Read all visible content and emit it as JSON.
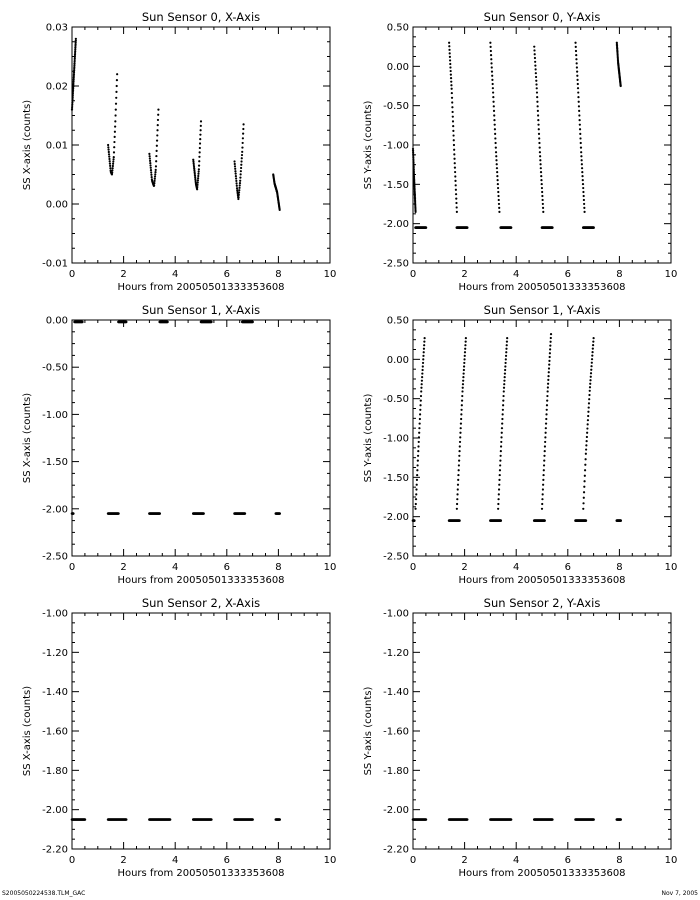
{
  "footer": {
    "left": "S2005050224538.TLM_GAC",
    "right": "Nov  7, 2005"
  },
  "chart_data": [
    {
      "type": "scatter",
      "title": "Sun Sensor 0, X-Axis",
      "xlabel": "Hours from 20050501333353608",
      "ylabel": "SS X-axis (counts)",
      "xlim": [
        0,
        10
      ],
      "ylim": [
        -0.01,
        0.03
      ],
      "xticks": [
        0,
        2,
        4,
        6,
        8,
        10
      ],
      "yticks": [
        -0.01,
        0.0,
        0.01,
        0.02,
        0.03
      ],
      "ytick_labels": [
        "-0.01",
        "0.00",
        "0.01",
        "0.02",
        "0.03"
      ],
      "segments": [
        {
          "kind": "curve",
          "x_start": 0.0,
          "x_end": 0.15,
          "points": [
            [
              0.0,
              0.016
            ],
            [
              0.05,
              0.02
            ],
            [
              0.1,
              0.024
            ],
            [
              0.15,
              0.028
            ]
          ]
        },
        {
          "kind": "curve",
          "x_start": 1.4,
          "x_end": 1.75,
          "points": [
            [
              1.4,
              0.01
            ],
            [
              1.5,
              0.0055
            ],
            [
              1.55,
              0.005
            ],
            [
              1.62,
              0.008
            ],
            [
              1.68,
              0.014
            ],
            [
              1.75,
              0.022
            ]
          ]
        },
        {
          "kind": "curve",
          "x_start": 3.0,
          "x_end": 3.35,
          "points": [
            [
              3.0,
              0.0085
            ],
            [
              3.1,
              0.004
            ],
            [
              3.18,
              0.003
            ],
            [
              3.25,
              0.006
            ],
            [
              3.3,
              0.011
            ],
            [
              3.35,
              0.016
            ]
          ]
        },
        {
          "kind": "curve",
          "x_start": 4.7,
          "x_end": 5.0,
          "points": [
            [
              4.7,
              0.0075
            ],
            [
              4.8,
              0.0035
            ],
            [
              4.85,
              0.0025
            ],
            [
              4.92,
              0.006
            ],
            [
              4.96,
              0.01
            ],
            [
              5.0,
              0.014
            ]
          ]
        },
        {
          "kind": "curve",
          "x_start": 6.3,
          "x_end": 6.65,
          "points": [
            [
              6.3,
              0.0072
            ],
            [
              6.4,
              0.0025
            ],
            [
              6.45,
              0.0008
            ],
            [
              6.52,
              0.004
            ],
            [
              6.6,
              0.009
            ],
            [
              6.65,
              0.0135
            ]
          ]
        },
        {
          "kind": "curve",
          "x_start": 7.8,
          "x_end": 8.05,
          "points": [
            [
              7.8,
              0.005
            ],
            [
              7.85,
              0.0035
            ],
            [
              7.95,
              0.002
            ],
            [
              8.0,
              0.0005
            ],
            [
              8.05,
              -0.001
            ]
          ]
        }
      ]
    },
    {
      "type": "scatter",
      "title": "Sun Sensor 0, Y-Axis",
      "xlabel": "Hours from 20050501333353608",
      "ylabel": "SS Y-axis (counts)",
      "xlim": [
        0,
        10
      ],
      "ylim": [
        -2.5,
        0.5
      ],
      "xticks": [
        0,
        2,
        4,
        6,
        8,
        10
      ],
      "yticks": [
        -2.5,
        -2.0,
        -1.5,
        -1.0,
        -0.5,
        0.0,
        0.5
      ],
      "ytick_labels": [
        "-2.50",
        "-2.00",
        "-1.50",
        "-1.00",
        "-0.50",
        "0.00",
        "0.50"
      ],
      "segments": [
        {
          "kind": "curve",
          "x_start": 0.0,
          "x_end": 0.1,
          "points": [
            [
              0.0,
              -1.05
            ],
            [
              0.04,
              -1.4
            ],
            [
              0.08,
              -1.7
            ],
            [
              0.1,
              -1.85
            ]
          ]
        },
        {
          "kind": "flat",
          "x_start": 0.1,
          "x_end": 0.5,
          "y": -2.05
        },
        {
          "kind": "curve",
          "x_start": 1.4,
          "x_end": 1.7,
          "points": [
            [
              1.4,
              0.3
            ],
            [
              1.5,
              -0.3
            ],
            [
              1.6,
              -1.1
            ],
            [
              1.7,
              -1.85
            ]
          ]
        },
        {
          "kind": "flat",
          "x_start": 1.7,
          "x_end": 2.1,
          "y": -2.05
        },
        {
          "kind": "curve",
          "x_start": 3.0,
          "x_end": 3.35,
          "points": [
            [
              3.0,
              0.3
            ],
            [
              3.1,
              -0.3
            ],
            [
              3.22,
              -1.1
            ],
            [
              3.35,
              -1.85
            ]
          ]
        },
        {
          "kind": "flat",
          "x_start": 3.4,
          "x_end": 3.8,
          "y": -2.05
        },
        {
          "kind": "curve",
          "x_start": 4.7,
          "x_end": 5.05,
          "points": [
            [
              4.7,
              0.25
            ],
            [
              4.8,
              -0.3
            ],
            [
              4.92,
              -1.1
            ],
            [
              5.05,
              -1.85
            ]
          ]
        },
        {
          "kind": "flat",
          "x_start": 5.0,
          "x_end": 5.4,
          "y": -2.05
        },
        {
          "kind": "curve",
          "x_start": 6.3,
          "x_end": 6.65,
          "points": [
            [
              6.3,
              0.3
            ],
            [
              6.4,
              -0.3
            ],
            [
              6.52,
              -1.1
            ],
            [
              6.65,
              -1.85
            ]
          ]
        },
        {
          "kind": "flat",
          "x_start": 6.6,
          "x_end": 7.0,
          "y": -2.05
        },
        {
          "kind": "curve",
          "x_start": 7.9,
          "x_end": 8.05,
          "points": [
            [
              7.9,
              0.3
            ],
            [
              7.95,
              0.05
            ],
            [
              8.0,
              -0.1
            ],
            [
              8.05,
              -0.25
            ]
          ]
        }
      ]
    },
    {
      "type": "scatter",
      "title": "Sun Sensor 1, X-Axis",
      "xlabel": "Hours from 20050501333353608",
      "ylabel": "SS X-axis (counts)",
      "xlim": [
        0,
        10
      ],
      "ylim": [
        -2.5,
        0.0
      ],
      "xticks": [
        0,
        2,
        4,
        6,
        8,
        10
      ],
      "yticks": [
        -2.5,
        -2.0,
        -1.5,
        -1.0,
        -0.5,
        0.0
      ],
      "ytick_labels": [
        "-2.50",
        "-2.00",
        "-1.50",
        "-1.00",
        "-0.50",
        "0.00"
      ],
      "segments": [
        {
          "kind": "flat",
          "x_start": 0.1,
          "x_end": 0.4,
          "y": -0.02
        },
        {
          "kind": "flat",
          "x_start": 1.8,
          "x_end": 2.1,
          "y": -0.02
        },
        {
          "kind": "flat",
          "x_start": 3.4,
          "x_end": 3.7,
          "y": -0.02
        },
        {
          "kind": "flat",
          "x_start": 5.0,
          "x_end": 5.4,
          "y": -0.02
        },
        {
          "kind": "flat",
          "x_start": 6.6,
          "x_end": 7.0,
          "y": -0.02
        },
        {
          "kind": "flat",
          "x_start": 0.0,
          "x_end": 0.05,
          "y": -2.05
        },
        {
          "kind": "flat",
          "x_start": 1.4,
          "x_end": 1.8,
          "y": -2.05
        },
        {
          "kind": "flat",
          "x_start": 3.0,
          "x_end": 3.4,
          "y": -2.05
        },
        {
          "kind": "flat",
          "x_start": 4.7,
          "x_end": 5.1,
          "y": -2.05
        },
        {
          "kind": "flat",
          "x_start": 6.3,
          "x_end": 6.7,
          "y": -2.05
        },
        {
          "kind": "flat",
          "x_start": 7.9,
          "x_end": 8.05,
          "y": -2.05
        }
      ]
    },
    {
      "type": "scatter",
      "title": "Sun Sensor 1, Y-Axis",
      "xlabel": "Hours from 20050501333353608",
      "ylabel": "SS Y-axis (counts)",
      "xlim": [
        0,
        10
      ],
      "ylim": [
        -2.5,
        0.5
      ],
      "xticks": [
        0,
        2,
        4,
        6,
        8,
        10
      ],
      "yticks": [
        -2.5,
        -2.0,
        -1.5,
        -1.0,
        -0.5,
        0.0,
        0.5
      ],
      "ytick_labels": [
        "-2.50",
        "-2.00",
        "-1.50",
        "-1.00",
        "-0.50",
        "0.00",
        "0.50"
      ],
      "segments": [
        {
          "kind": "flat",
          "x_start": 0.0,
          "x_end": 0.05,
          "y": -2.05
        },
        {
          "kind": "curve",
          "x_start": 0.1,
          "x_end": 0.45,
          "points": [
            [
              0.1,
              -1.9
            ],
            [
              0.2,
              -1.2
            ],
            [
              0.32,
              -0.4
            ],
            [
              0.45,
              0.27
            ]
          ]
        },
        {
          "kind": "flat",
          "x_start": 1.4,
          "x_end": 1.8,
          "y": -2.05
        },
        {
          "kind": "curve",
          "x_start": 1.7,
          "x_end": 2.05,
          "points": [
            [
              1.7,
              -1.9
            ],
            [
              1.8,
              -1.2
            ],
            [
              1.92,
              -0.4
            ],
            [
              2.05,
              0.27
            ]
          ]
        },
        {
          "kind": "flat",
          "x_start": 3.0,
          "x_end": 3.4,
          "y": -2.05
        },
        {
          "kind": "curve",
          "x_start": 3.3,
          "x_end": 3.65,
          "points": [
            [
              3.3,
              -1.9
            ],
            [
              3.4,
              -1.2
            ],
            [
              3.52,
              -0.4
            ],
            [
              3.65,
              0.27
            ]
          ]
        },
        {
          "kind": "flat",
          "x_start": 4.7,
          "x_end": 5.1,
          "y": -2.05
        },
        {
          "kind": "curve",
          "x_start": 5.0,
          "x_end": 5.35,
          "points": [
            [
              5.0,
              -1.9
            ],
            [
              5.1,
              -1.2
            ],
            [
              5.22,
              -0.4
            ],
            [
              5.35,
              0.32
            ]
          ]
        },
        {
          "kind": "flat",
          "x_start": 6.3,
          "x_end": 6.7,
          "y": -2.05
        },
        {
          "kind": "curve",
          "x_start": 6.6,
          "x_end": 7.0,
          "points": [
            [
              6.6,
              -1.9
            ],
            [
              6.7,
              -1.2
            ],
            [
              6.85,
              -0.4
            ],
            [
              7.0,
              0.27
            ]
          ]
        },
        {
          "kind": "flat",
          "x_start": 7.9,
          "x_end": 8.05,
          "y": -2.05
        }
      ]
    },
    {
      "type": "scatter",
      "title": "Sun Sensor 2, X-Axis",
      "xlabel": "Hours from 20050501333353608",
      "ylabel": "SS X-axis (counts)",
      "xlim": [
        0,
        10
      ],
      "ylim": [
        -2.2,
        -1.0
      ],
      "xticks": [
        0,
        2,
        4,
        6,
        8,
        10
      ],
      "yticks": [
        -2.2,
        -2.0,
        -1.8,
        -1.6,
        -1.4,
        -1.2,
        -1.0
      ],
      "ytick_labels": [
        "-2.20",
        "-2.00",
        "-1.80",
        "-1.60",
        "-1.40",
        "-1.20",
        "-1.00"
      ],
      "segments": [
        {
          "kind": "flat",
          "x_start": 0.0,
          "x_end": 0.5,
          "y": -2.05
        },
        {
          "kind": "flat",
          "x_start": 1.4,
          "x_end": 2.1,
          "y": -2.05
        },
        {
          "kind": "flat",
          "x_start": 3.0,
          "x_end": 3.8,
          "y": -2.05
        },
        {
          "kind": "flat",
          "x_start": 4.7,
          "x_end": 5.4,
          "y": -2.05
        },
        {
          "kind": "flat",
          "x_start": 6.3,
          "x_end": 7.0,
          "y": -2.05
        },
        {
          "kind": "flat",
          "x_start": 7.9,
          "x_end": 8.05,
          "y": -2.05
        }
      ]
    },
    {
      "type": "scatter",
      "title": "Sun Sensor 2, Y-Axis",
      "xlabel": "Hours from 20050501333353608",
      "ylabel": "SS Y-axis (counts)",
      "xlim": [
        0,
        10
      ],
      "ylim": [
        -2.2,
        -1.0
      ],
      "xticks": [
        0,
        2,
        4,
        6,
        8,
        10
      ],
      "yticks": [
        -2.2,
        -2.0,
        -1.8,
        -1.6,
        -1.4,
        -1.2,
        -1.0
      ],
      "ytick_labels": [
        "-2.20",
        "-2.00",
        "-1.80",
        "-1.60",
        "-1.40",
        "-1.20",
        "-1.00"
      ],
      "segments": [
        {
          "kind": "flat",
          "x_start": 0.0,
          "x_end": 0.5,
          "y": -2.05
        },
        {
          "kind": "flat",
          "x_start": 1.4,
          "x_end": 2.1,
          "y": -2.05
        },
        {
          "kind": "flat",
          "x_start": 3.0,
          "x_end": 3.8,
          "y": -2.05
        },
        {
          "kind": "flat",
          "x_start": 4.7,
          "x_end": 5.4,
          "y": -2.05
        },
        {
          "kind": "flat",
          "x_start": 6.3,
          "x_end": 7.0,
          "y": -2.05
        },
        {
          "kind": "flat",
          "x_start": 7.9,
          "x_end": 8.05,
          "y": -2.05
        }
      ]
    }
  ]
}
